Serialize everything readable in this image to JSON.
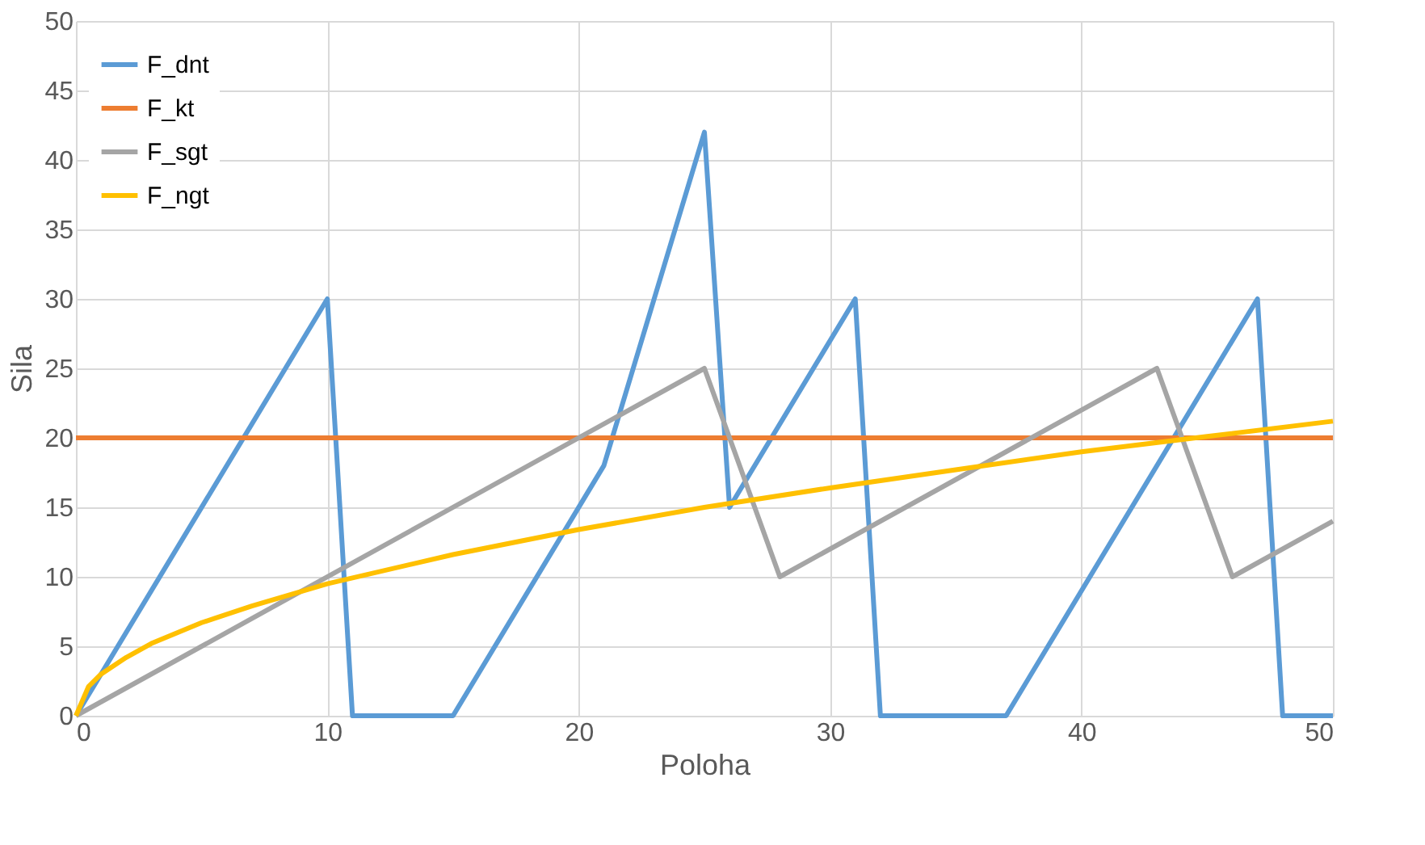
{
  "chart_data": {
    "type": "line",
    "xlabel": "Poloha",
    "ylabel": "Sila",
    "xlim": [
      0,
      50
    ],
    "xticks": [
      0,
      10,
      20,
      30,
      40,
      50
    ],
    "ylim": [
      0,
      50
    ],
    "yticks": [
      0,
      5,
      10,
      15,
      20,
      25,
      30,
      35,
      40,
      45,
      50
    ],
    "grid": true,
    "legend": "top left",
    "marker": "none",
    "line_style": "solid",
    "series": [
      {
        "name": "F_dnt",
        "color": "#5b9bd5",
        "x": [
          0,
          10,
          11,
          15,
          21,
          25,
          26,
          31,
          32,
          37,
          47,
          48,
          50
        ],
        "values": [
          0,
          30,
          0,
          0,
          18,
          42,
          15,
          30,
          0,
          0,
          30,
          0,
          0
        ]
      },
      {
        "name": "F_kt",
        "color": "#ed7d31",
        "x": [
          0,
          50
        ],
        "values": [
          20,
          20
        ]
      },
      {
        "name": "F_sgt",
        "color": "#a5a5a5",
        "x": [
          0,
          25,
          28,
          43,
          46,
          50
        ],
        "values": [
          0,
          25,
          10,
          25,
          10,
          14
        ]
      },
      {
        "name": "F_ngt",
        "color": "#ffc000",
        "x": [
          0,
          0.5,
          1,
          2,
          3,
          5,
          7,
          10,
          15,
          20,
          25,
          30,
          35,
          40,
          45,
          50
        ],
        "values": [
          0,
          2.1,
          3,
          4.2,
          5.2,
          6.7,
          7.9,
          9.5,
          11.6,
          13.4,
          15,
          16.4,
          17.7,
          19,
          20.1,
          21.2
        ]
      }
    ]
  }
}
